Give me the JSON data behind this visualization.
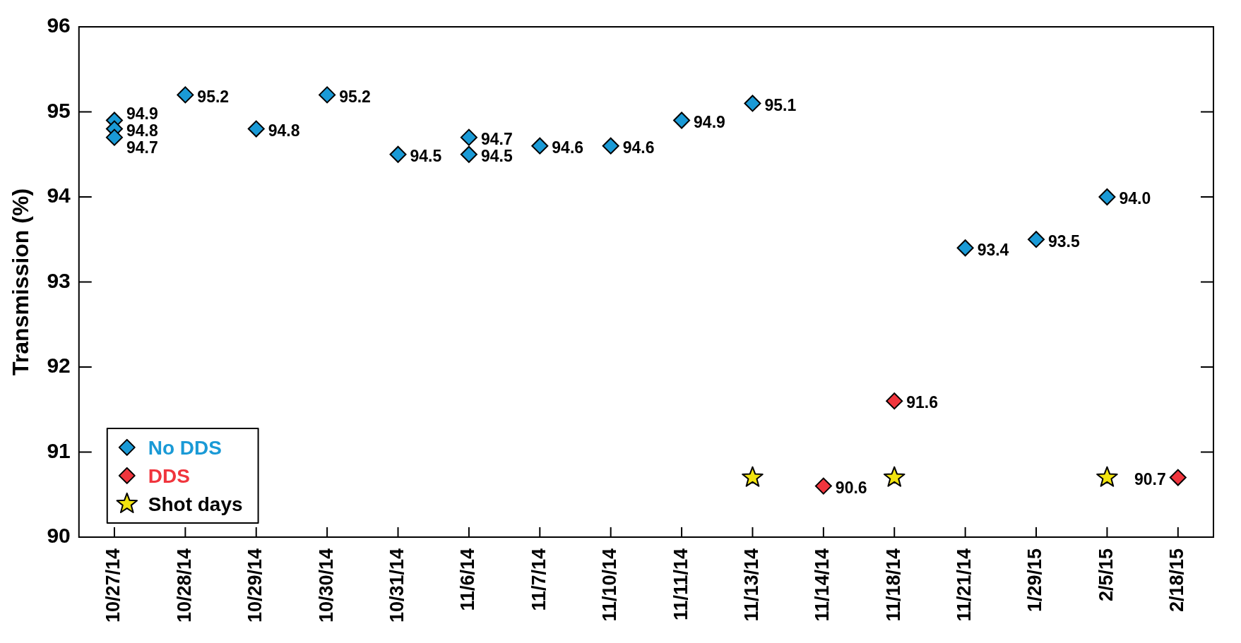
{
  "chart_data": {
    "type": "scatter",
    "ylabel": "Transmission (%)",
    "categories": [
      "10/27/14",
      "10/28/14",
      "10/29/14",
      "10/30/14",
      "10/31/14",
      "11/6/14",
      "11/7/14",
      "11/10/14",
      "11/11/14",
      "11/13/14",
      "11/14/14",
      "11/18/14",
      "11/21/14",
      "1/29/15",
      "2/5/15",
      "2/18/15"
    ],
    "series": [
      {
        "name": "No DDS",
        "color": "#1a9ad6",
        "marker": "diamond",
        "x": [
          "10/27/14",
          "10/27/14",
          "10/27/14",
          "10/28/14",
          "10/29/14",
          "10/30/14",
          "10/31/14",
          "11/6/14",
          "11/6/14",
          "11/7/14",
          "11/10/14",
          "11/11/14",
          "11/13/14",
          "11/21/14",
          "1/29/15",
          "2/5/15"
        ],
        "values": [
          94.9,
          94.8,
          94.7,
          95.2,
          94.8,
          95.2,
          94.5,
          94.7,
          94.5,
          94.6,
          94.6,
          94.9,
          95.1,
          93.4,
          93.5,
          94.0
        ],
        "value_labels": [
          "94.9",
          "94.8",
          "94.7",
          "95.2",
          "94.8",
          "95.2",
          "94.5",
          "94.7",
          "94.5",
          "94.6",
          "94.6",
          "94.9",
          "95.1",
          "93.4",
          "93.5",
          "94.0"
        ]
      },
      {
        "name": "DDS",
        "color": "#f0353d",
        "marker": "diamond",
        "x": [
          "11/14/14",
          "11/18/14",
          "2/18/15"
        ],
        "values": [
          90.6,
          91.6,
          90.7
        ],
        "value_labels": [
          "90.6",
          "91.6",
          "90.7"
        ]
      },
      {
        "name": "Shot days",
        "color": "#f2e40f",
        "marker": "star",
        "x": [
          "11/13/14",
          "11/18/14",
          "2/5/15"
        ],
        "values": [
          90.7,
          90.7,
          90.7
        ]
      }
    ],
    "ylim": [
      90,
      96
    ],
    "yticks": [
      90,
      91,
      92,
      93,
      94,
      95,
      96
    ],
    "grid": false,
    "legend": "bottom left"
  }
}
